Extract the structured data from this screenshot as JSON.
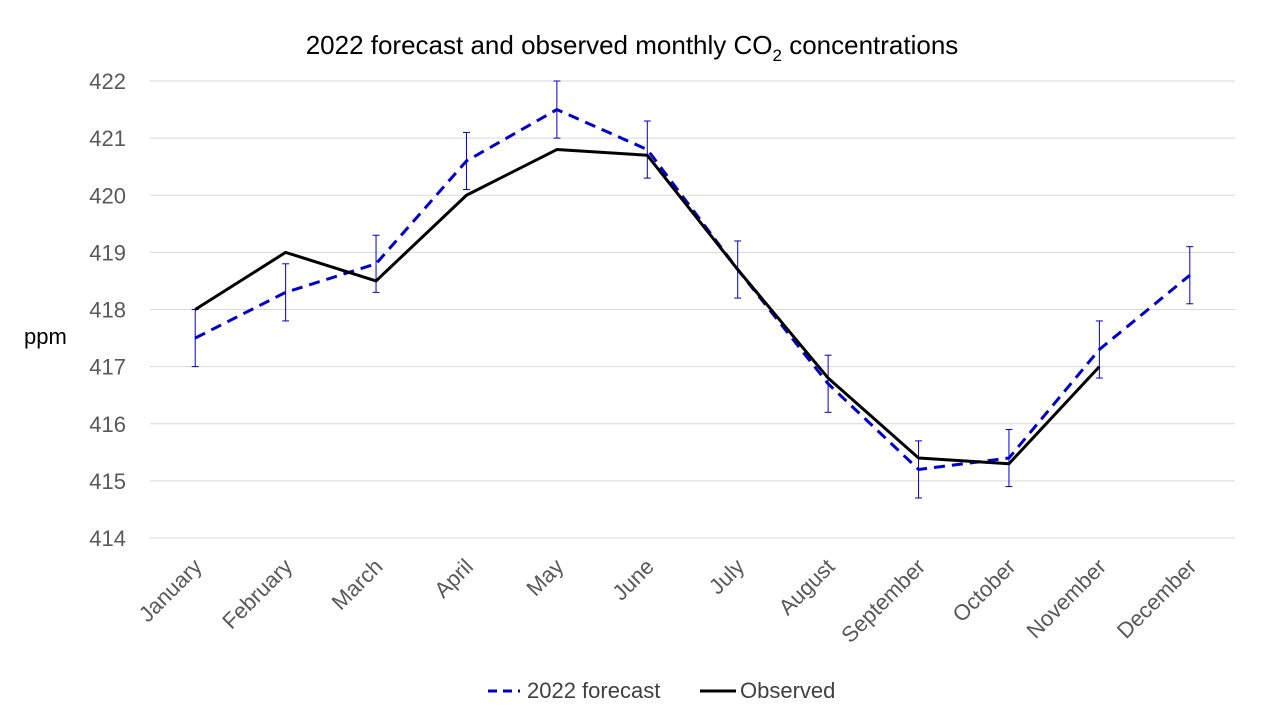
{
  "chart_data": {
    "type": "line",
    "title": "2022 forecast and observed monthly CO",
    "title_subscript": "2",
    "title_suffix": " concentrations",
    "xlabel": "",
    "ylabel": "ppm",
    "ylim": [
      414,
      422
    ],
    "yticks": [
      414,
      415,
      416,
      417,
      418,
      419,
      420,
      421,
      422
    ],
    "grid": true,
    "legend_position": "bottom",
    "categories": [
      "January",
      "February",
      "March",
      "April",
      "May",
      "June",
      "July",
      "August",
      "September",
      "October",
      "November",
      "December"
    ],
    "series": [
      {
        "name": "2022 forecast",
        "style": "dashed",
        "color": "#0000CC",
        "values": [
          417.5,
          418.3,
          418.8,
          420.6,
          421.5,
          420.8,
          418.7,
          416.7,
          415.2,
          415.4,
          417.3,
          418.6
        ],
        "error": 0.5
      },
      {
        "name": "Observed",
        "style": "solid",
        "color": "#000000",
        "values": [
          418.0,
          419.0,
          418.5,
          420.0,
          420.8,
          420.7,
          418.7,
          416.8,
          415.4,
          415.3,
          417.0,
          null
        ]
      }
    ]
  }
}
